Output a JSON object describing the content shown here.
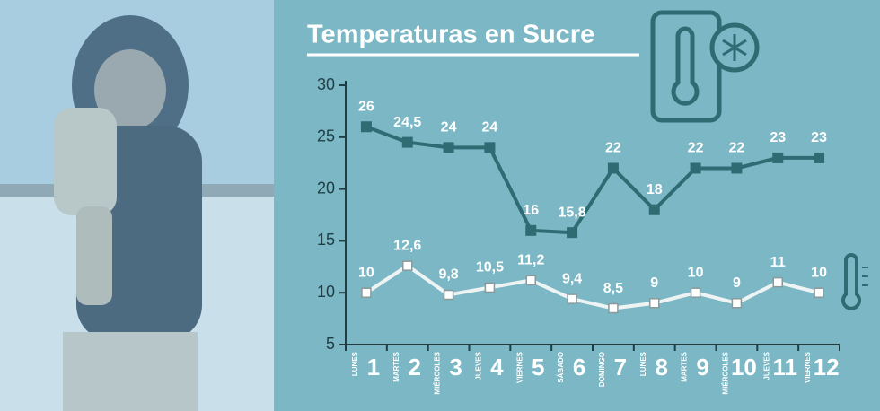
{
  "chart_data": {
    "type": "line",
    "title": "Temperaturas en Sucre",
    "categories": [
      "1",
      "2",
      "3",
      "4",
      "5",
      "6",
      "7",
      "8",
      "9",
      "10",
      "11",
      "12"
    ],
    "day_labels": [
      "LUNES",
      "MARTES",
      "MIÉRCOLES",
      "JUEVES",
      "VIERNES",
      "SÁBADO",
      "DOMINGO",
      "LUNES",
      "MARTES",
      "MIÉRCOLES",
      "JUEVES",
      "VIERNES"
    ],
    "series": [
      {
        "color": "#2e6b73",
        "marker": "circle",
        "values": [
          26,
          24.5,
          24,
          24,
          16,
          15.8,
          22,
          18,
          22,
          22,
          23,
          23
        ],
        "value_labels": [
          "26",
          "24,5",
          "24",
          "24",
          "16",
          "15,8",
          "22",
          "18",
          "22",
          "22",
          "23",
          "23"
        ]
      },
      {
        "color": "#eef3f4",
        "marker": "square",
        "values": [
          10,
          12.6,
          9.8,
          10.5,
          11.2,
          9.4,
          8.5,
          9,
          10,
          9,
          11,
          10
        ],
        "value_labels": [
          "10",
          "12,6",
          "9,8",
          "10,5",
          "11,2",
          "9,4",
          "8,5",
          "9",
          "10",
          "9",
          "11",
          "10"
        ]
      }
    ],
    "ylim": [
      5,
      30
    ],
    "yticks": [
      5,
      10,
      15,
      20,
      25,
      30
    ]
  }
}
